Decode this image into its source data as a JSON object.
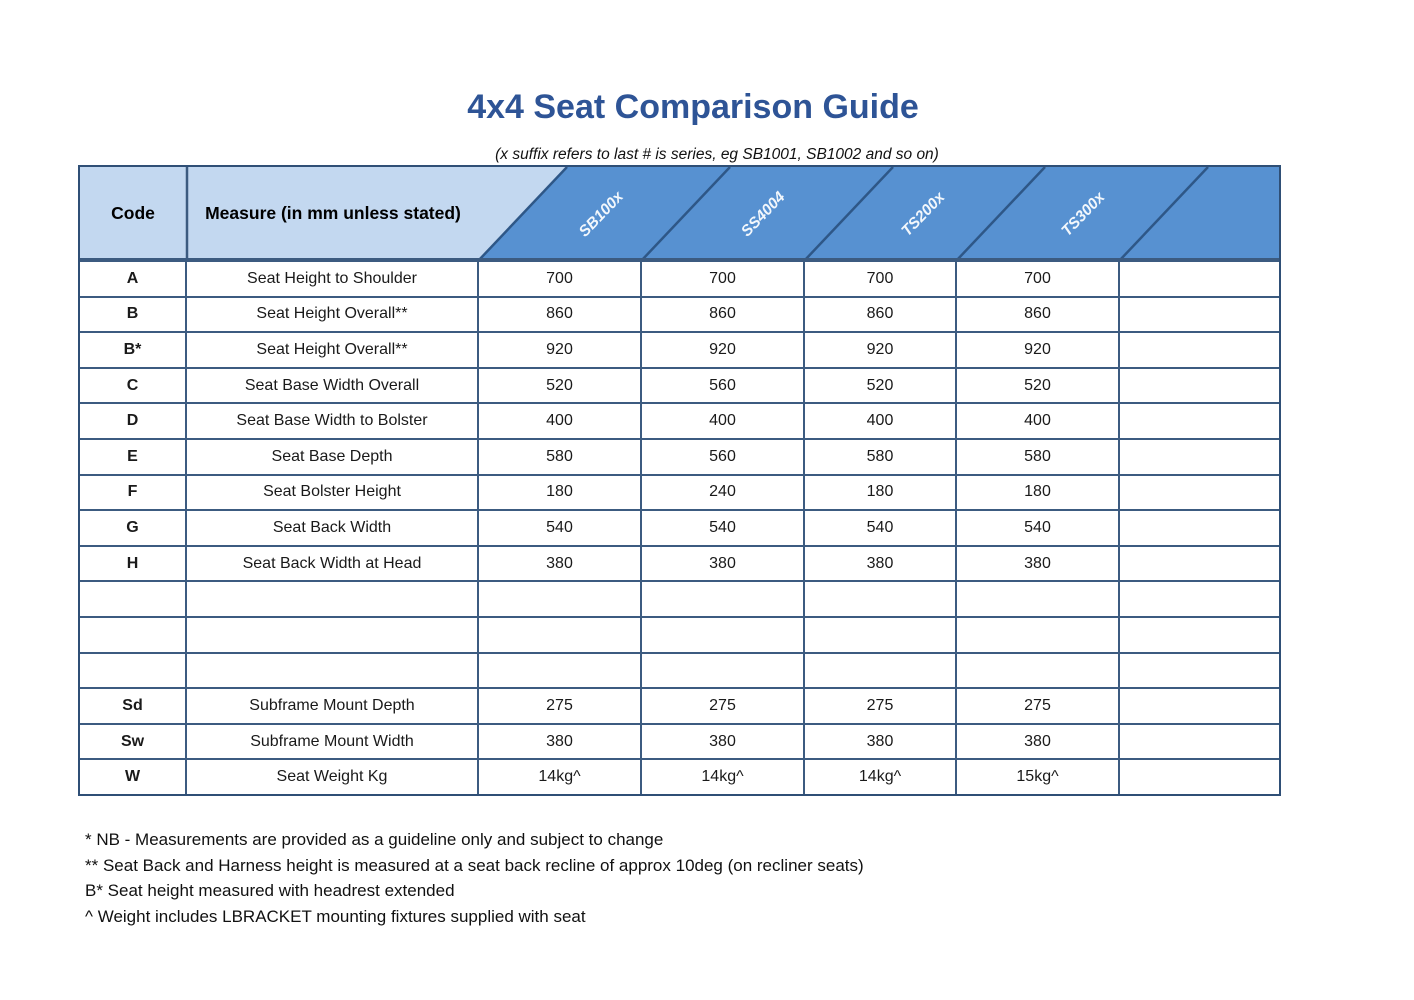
{
  "title": "4x4 Seat Comparison Guide",
  "subtitle": "(x suffix refers to last # is series, eg SB1001, SB1002 and so on)",
  "colors": {
    "title_blue": "#2e5496",
    "header_light_blue": "#c3d8f0",
    "header_mid_blue": "#5791d1",
    "grid_line": "#3c5b80",
    "header_text": "#000000",
    "column_label_text": "#f2f7fc"
  },
  "table": {
    "code_header": "Code",
    "measure_header": "Measure (in mm unless stated)",
    "columns": [
      {
        "label": "SB100x"
      },
      {
        "label": "SS4004"
      },
      {
        "label": "TS200x"
      },
      {
        "label": "TS300x"
      },
      {
        "label": ""
      }
    ],
    "rows": [
      {
        "code": "A",
        "measure": "Seat Height to Shoulder",
        "values": [
          "700",
          "700",
          "700",
          "700",
          ""
        ]
      },
      {
        "code": "B",
        "measure": "Seat Height Overall**",
        "values": [
          "860",
          "860",
          "860",
          "860",
          ""
        ]
      },
      {
        "code": "B*",
        "measure": "Seat Height Overall**",
        "values": [
          "920",
          "920",
          "920",
          "920",
          ""
        ]
      },
      {
        "code": "C",
        "measure": "Seat Base Width Overall",
        "values": [
          "520",
          "560",
          "520",
          "520",
          ""
        ]
      },
      {
        "code": "D",
        "measure": "Seat Base Width to Bolster",
        "values": [
          "400",
          "400",
          "400",
          "400",
          ""
        ]
      },
      {
        "code": "E",
        "measure": "Seat Base Depth",
        "values": [
          "580",
          "560",
          "580",
          "580",
          ""
        ]
      },
      {
        "code": "F",
        "measure": "Seat Bolster Height",
        "values": [
          "180",
          "240",
          "180",
          "180",
          ""
        ]
      },
      {
        "code": "G",
        "measure": "Seat Back Width",
        "values": [
          "540",
          "540",
          "540",
          "540",
          ""
        ]
      },
      {
        "code": "H",
        "measure": "Seat Back Width at Head",
        "values": [
          "380",
          "380",
          "380",
          "380",
          ""
        ]
      },
      {
        "code": "",
        "measure": "",
        "values": [
          "",
          "",
          "",
          "",
          ""
        ]
      },
      {
        "code": "",
        "measure": "",
        "values": [
          "",
          "",
          "",
          "",
          ""
        ]
      },
      {
        "code": "",
        "measure": "",
        "values": [
          "",
          "",
          "",
          "",
          ""
        ]
      },
      {
        "code": "Sd",
        "measure": "Subframe Mount Depth",
        "values": [
          "275",
          "275",
          "275",
          "275",
          ""
        ]
      },
      {
        "code": "Sw",
        "measure": "Subframe Mount Width",
        "values": [
          "380",
          "380",
          "380",
          "380",
          ""
        ]
      },
      {
        "code": "W",
        "measure": "Seat Weight Kg",
        "values": [
          "14kg^",
          "14kg^",
          "14kg^",
          "15kg^",
          ""
        ]
      }
    ]
  },
  "footnotes": [
    "* NB - Measurements are provided as a guideline only and subject to change",
    "** Seat Back and Harness height is measured at a seat back recline of approx 10deg (on recliner seats)",
    "B* Seat height measured with headrest extended",
    "^ Weight includes LBRACKET mounting fixtures supplied with seat"
  ]
}
